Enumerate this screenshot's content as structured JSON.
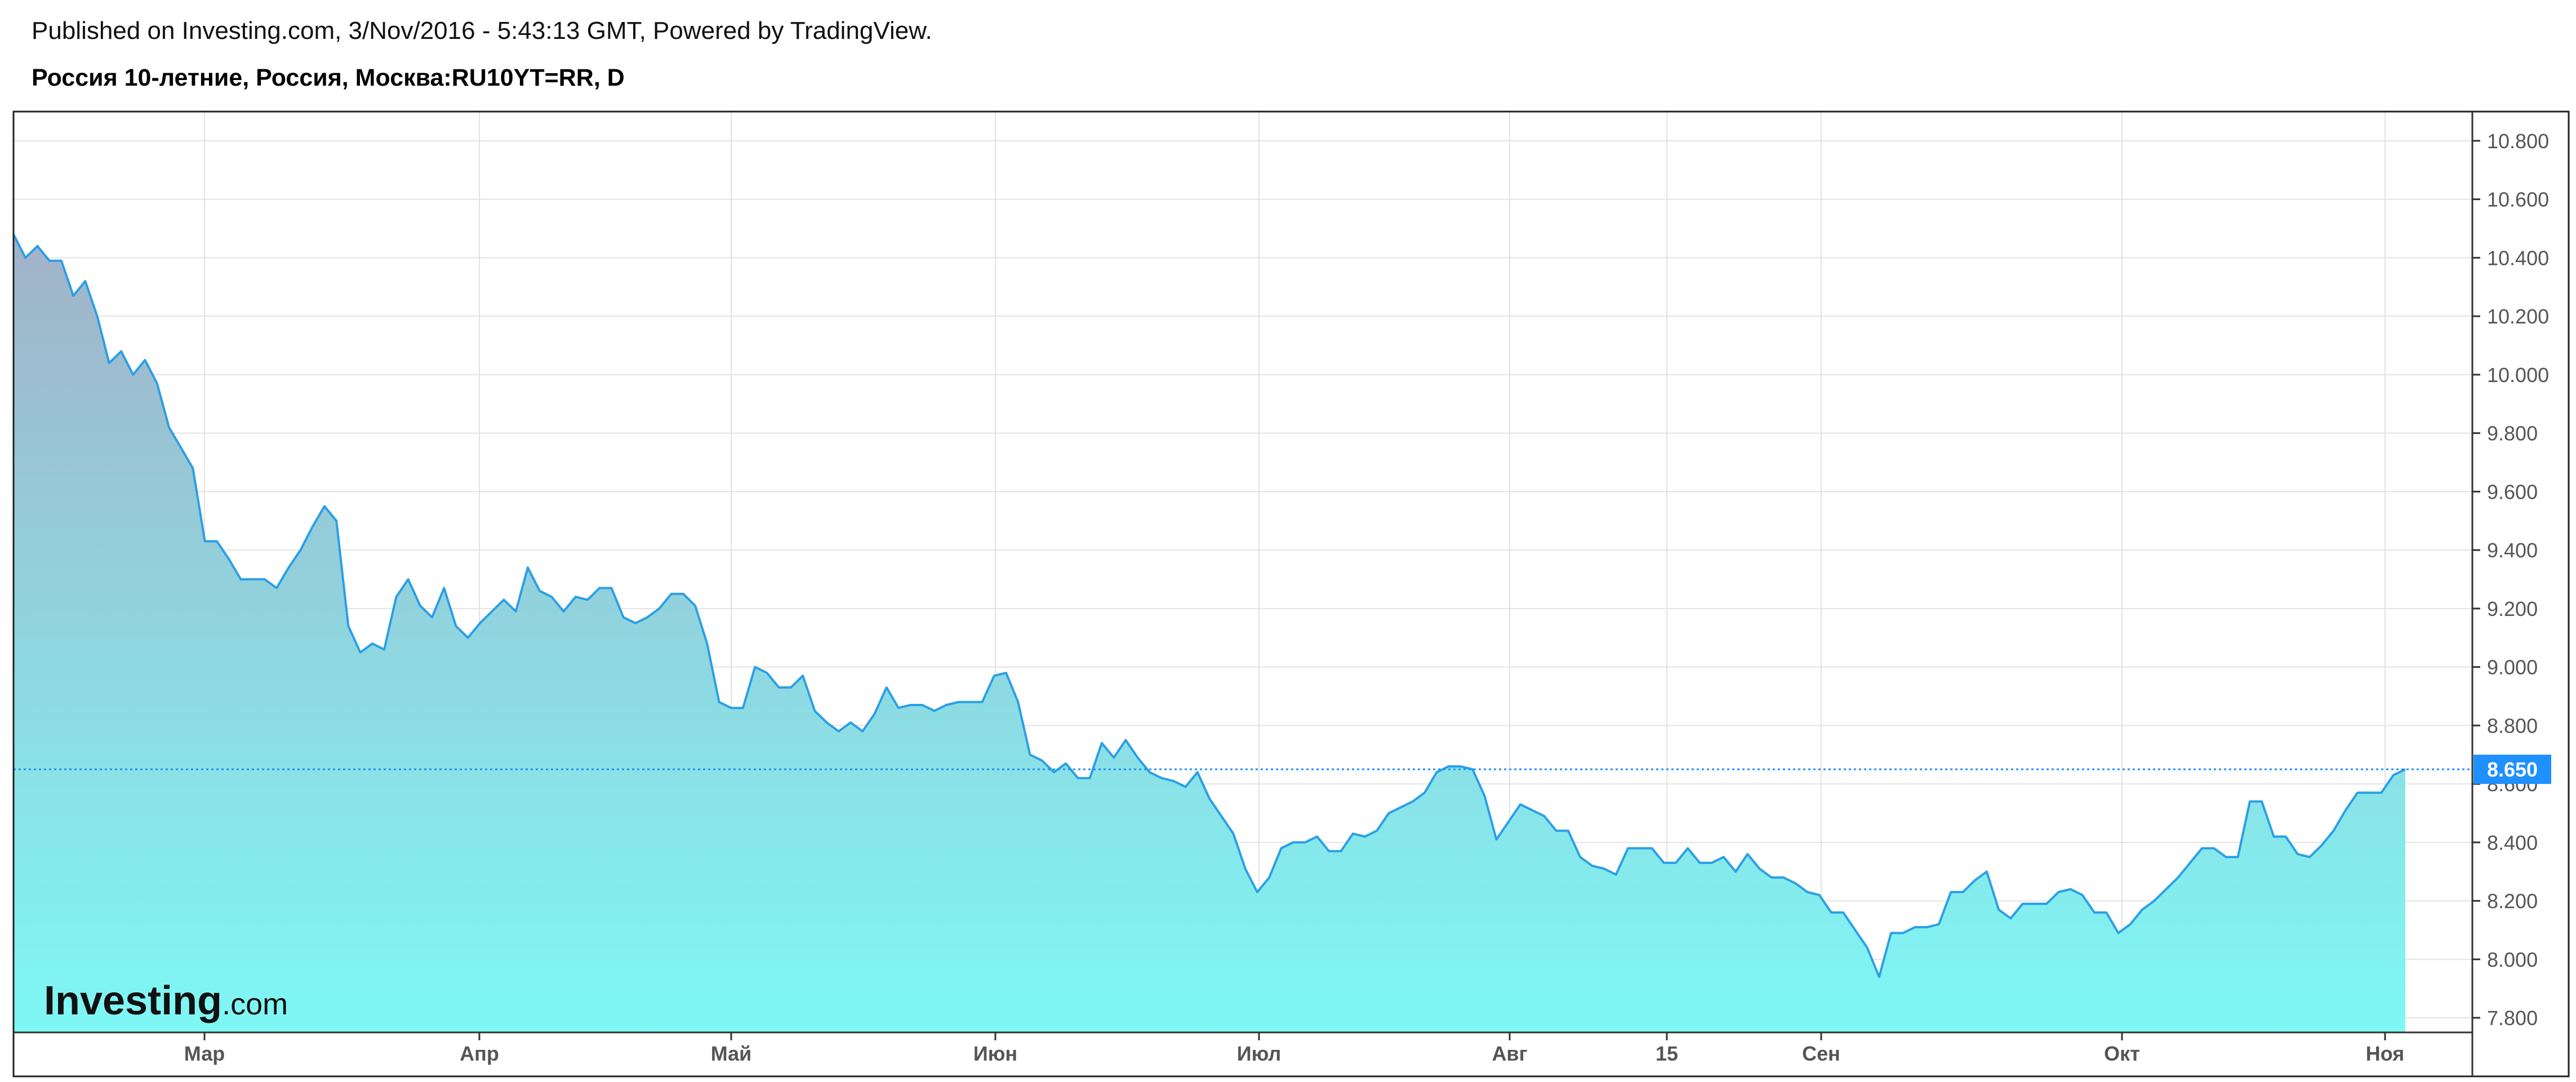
{
  "header": {
    "published_line": "Published on Investing.com, 3/Nov/2016 - 5:43:13 GMT, Powered by TradingView.",
    "symbol_line": "Россия 10-летние, Россия, Москва:RU10YT=RR, D"
  },
  "branding": {
    "logo_main": "Investing",
    "logo_suffix": ".com"
  },
  "colors": {
    "line": "#2a9fe6",
    "fill_top": "#a2b2c8",
    "fill_bottom": "#7ef8f5",
    "grid": "#e3e3e3",
    "price_tag": "#1e90ff"
  },
  "chart_data": {
    "type": "area",
    "ylim": [
      7.75,
      10.9
    ],
    "y_ticks": [
      "7.800",
      "8.000",
      "8.200",
      "8.400",
      "8.600",
      "8.800",
      "9.000",
      "9.200",
      "9.400",
      "9.600",
      "9.800",
      "10.000",
      "10.200",
      "10.400",
      "10.600",
      "10.800"
    ],
    "x_labels": [
      "Мар",
      "Апр",
      "Май",
      "Июн",
      "Июл",
      "Авг",
      "15",
      "Сен",
      "Окт",
      "Ноя"
    ],
    "last_value": 8.65,
    "last_value_label": "8.650",
    "grid": true,
    "values": [
      10.48,
      10.4,
      10.44,
      10.39,
      10.39,
      10.27,
      10.32,
      10.2,
      10.04,
      10.08,
      10.0,
      10.05,
      9.97,
      9.82,
      9.75,
      9.68,
      9.43,
      9.43,
      9.37,
      9.3,
      9.3,
      9.3,
      9.27,
      9.34,
      9.4,
      9.48,
      9.55,
      9.5,
      9.14,
      9.05,
      9.08,
      9.06,
      9.24,
      9.3,
      9.21,
      9.17,
      9.27,
      9.14,
      9.1,
      9.15,
      9.19,
      9.23,
      9.19,
      9.34,
      9.26,
      9.24,
      9.19,
      9.24,
      9.23,
      9.27,
      9.27,
      9.17,
      9.15,
      9.17,
      9.2,
      9.25,
      9.25,
      9.21,
      9.08,
      8.88,
      8.86,
      8.86,
      9.0,
      8.98,
      8.93,
      8.93,
      8.97,
      8.85,
      8.81,
      8.78,
      8.81,
      8.78,
      8.84,
      8.93,
      8.86,
      8.87,
      8.87,
      8.85,
      8.87,
      8.88,
      8.88,
      8.88,
      8.97,
      8.98,
      8.88,
      8.7,
      8.68,
      8.64,
      8.67,
      8.62,
      8.62,
      8.74,
      8.69,
      8.75,
      8.69,
      8.64,
      8.62,
      8.61,
      8.59,
      8.64,
      8.55,
      8.49,
      8.43,
      8.31,
      8.23,
      8.28,
      8.38,
      8.4,
      8.4,
      8.42,
      8.37,
      8.37,
      8.43,
      8.42,
      8.44,
      8.5,
      8.52,
      8.54,
      8.57,
      8.64,
      8.66,
      8.66,
      8.65,
      8.56,
      8.41,
      8.47,
      8.53,
      8.51,
      8.49,
      8.44,
      8.44,
      8.35,
      8.32,
      8.31,
      8.29,
      8.38,
      8.38,
      8.38,
      8.33,
      8.33,
      8.38,
      8.33,
      8.33,
      8.35,
      8.3,
      8.36,
      8.31,
      8.28,
      8.28,
      8.26,
      8.23,
      8.22,
      8.16,
      8.16,
      8.1,
      8.04,
      7.94,
      8.09,
      8.09,
      8.11,
      8.11,
      8.12,
      8.23,
      8.23,
      8.27,
      8.3,
      8.17,
      8.14,
      8.19,
      8.19,
      8.19,
      8.23,
      8.24,
      8.22,
      8.16,
      8.16,
      8.09,
      8.12,
      8.17,
      8.2,
      8.24,
      8.28,
      8.33,
      8.38,
      8.38,
      8.35,
      8.35,
      8.54,
      8.54,
      8.42,
      8.42,
      8.36,
      8.35,
      8.39,
      8.44,
      8.51,
      8.57,
      8.57,
      8.57,
      8.63,
      8.65
    ]
  }
}
